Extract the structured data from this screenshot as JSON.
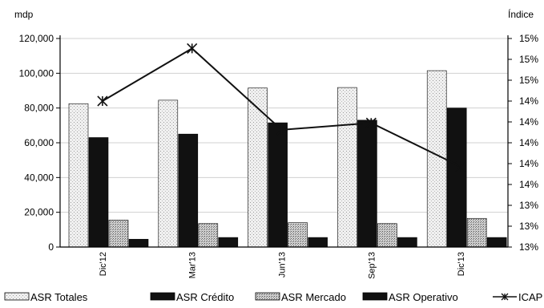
{
  "chart_data": {
    "type": "bar",
    "y_left_label": "mdp",
    "y_right_label": "Índice",
    "categories": [
      "Dic'12",
      "Mar'13",
      "Jun'13",
      "Sep'13",
      "Dic'13"
    ],
    "y_left_ticks": [
      "0",
      "20,000",
      "40,000",
      "60,000",
      "80,000",
      "100,000",
      "120,000"
    ],
    "y_left_lim": [
      0,
      120000
    ],
    "y_right_ticks": [
      "13%",
      "13%",
      "13%",
      "14%",
      "14%",
      "14%",
      "14%",
      "14%",
      "15%",
      "15%",
      "15%"
    ],
    "grid": true,
    "legend_position": "bottom",
    "series": [
      {
        "name": "ASR Totales",
        "kind": "bar",
        "axis": "left",
        "color": "#e8e8e8",
        "values": [
          82500,
          84500,
          91500,
          91800,
          101500
        ]
      },
      {
        "name": "ASR Crédito",
        "kind": "bar",
        "axis": "left",
        "color": "#111111",
        "values": [
          63000,
          65000,
          71500,
          73000,
          80000
        ]
      },
      {
        "name": "ASR Mercado",
        "kind": "bar",
        "axis": "left",
        "color": "#b8b8b8",
        "values": [
          15500,
          13500,
          14000,
          13500,
          16500
        ]
      },
      {
        "name": "ASR  Operativo",
        "kind": "bar",
        "axis": "left",
        "color": "#111111",
        "values": [
          4500,
          5500,
          5500,
          5500,
          5500
        ]
      },
      {
        "name": "ICAP",
        "kind": "line",
        "axis": "right",
        "color": "#111111",
        "marker": "star",
        "values": [
          0.1442,
          0.1495,
          0.1413,
          0.142,
          0.1376
        ],
        "ylim": [
          0.1295,
          0.1505
        ]
      }
    ]
  }
}
